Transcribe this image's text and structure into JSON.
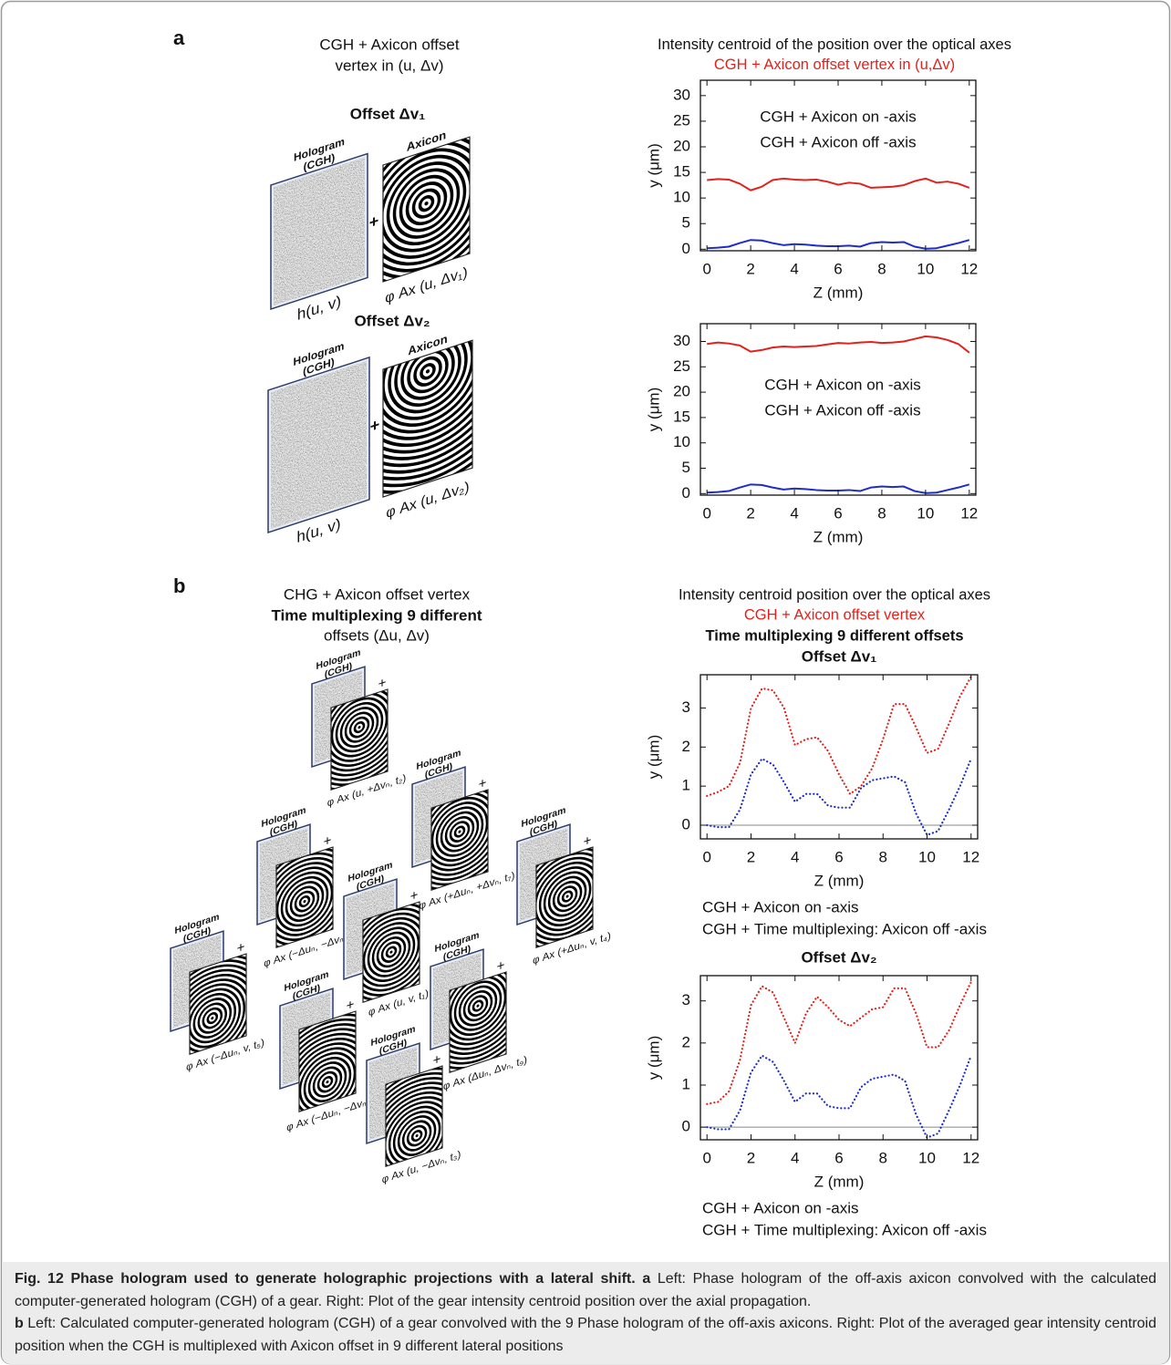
{
  "panel_a": {
    "label": "a",
    "title_lines": [
      "CGH + Axicon offset",
      "vertex in (u, Δv)"
    ],
    "diagrams": [
      {
        "title": "Offset Δv₁",
        "hologram": [
          "Hologram",
          "(CGH)"
        ],
        "axicon": "Axicon",
        "plus": "+",
        "hologram_caption": "h(u, v)",
        "axicon_caption": "φ Ax (u, Δv₁)"
      },
      {
        "title": "Offset Δv₂",
        "hologram": [
          "Hologram",
          "(CGH)"
        ],
        "axicon": "Axicon",
        "plus": "+",
        "hologram_caption": "h(u, v)",
        "axicon_caption": "φ Ax (u, Δv₂)"
      }
    ]
  },
  "panel_b": {
    "label": "b",
    "title_lines": [
      "CHG + Axicon offset vertex",
      "Time multiplexing 9 different",
      "offsets (Δu, Δv)"
    ],
    "chart_heading": [
      "Intensity centroid position over the optical axes",
      "CGH + Axicon offset vertex",
      "Time multiplexing 9 different offsets"
    ],
    "hologram": [
      "Hologram",
      "(CGH)"
    ],
    "plus": "+",
    "items": [
      "φ Ax (u, +Δvₙ, t₂)",
      "φ Ax (+Δuₙ, +Δvₙ, t₇)",
      "φ Ax (−Δuₙ, −Δvₙ, t₆)",
      "φ Ax (u, v, t₁)",
      "φ Ax (+Δuₙ, v, t₄)",
      "φ Ax (−Δuₙ, v, t₅)",
      "φ Ax (Δuₙ, Δvₙ, t₉)",
      "φ Ax (−Δuₙ, −Δvₙ, t₈)",
      "φ Ax (u, −Δvₙ, t₃)"
    ]
  },
  "chart_data": [
    {
      "type": "line",
      "title": "Intensity centroid of the position over the optical axes",
      "subtitle": "CGH + Axicon offset vertex in (u,Δv)",
      "subtitle_color": "#e3211c",
      "xlabel": "Z (mm)",
      "ylabel": "y (μm)",
      "line_style": "solid",
      "legend": "upper center",
      "zero_line": false,
      "x": [
        0,
        0.5,
        1,
        1.5,
        2,
        2.5,
        3,
        3.5,
        4,
        4.5,
        5,
        5.5,
        6,
        6.5,
        7,
        7.5,
        8,
        8.5,
        9,
        9.5,
        10,
        10.5,
        11,
        11.5,
        12
      ],
      "series": [
        {
          "name": "CGH + Axicon on -axis",
          "color": "#1f2ccc",
          "values": [
            0.2,
            0.3,
            0.5,
            1.2,
            1.8,
            1.7,
            1.2,
            0.8,
            1.0,
            0.9,
            0.7,
            0.6,
            0.6,
            0.7,
            0.5,
            1.2,
            1.4,
            1.3,
            1.4,
            0.5,
            0.1,
            0.2,
            0.7,
            1.2,
            1.8
          ]
        },
        {
          "name": "CGH + Axicon off -axis",
          "color": "#e3211c",
          "values": [
            13.5,
            13.7,
            13.6,
            12.8,
            11.5,
            12.2,
            13.5,
            13.8,
            13.6,
            13.5,
            13.6,
            13.2,
            12.6,
            13.0,
            12.8,
            12.0,
            12.1,
            12.2,
            12.5,
            13.3,
            13.8,
            13.0,
            13.2,
            12.8,
            12.0
          ]
        }
      ],
      "xlim": [
        -0.3,
        12.3
      ],
      "xticks": [
        0,
        2,
        4,
        6,
        8,
        10,
        12
      ],
      "ylim": [
        -0.3,
        33
      ],
      "yticks": [
        0,
        5,
        10,
        15,
        20,
        25,
        30
      ]
    },
    {
      "type": "line",
      "xlabel": "Z (mm)",
      "ylabel": "y (μm)",
      "line_style": "solid",
      "legend": "center",
      "zero_line": false,
      "x": [
        0,
        0.5,
        1,
        1.5,
        2,
        2.5,
        3,
        3.5,
        4,
        4.5,
        5,
        5.5,
        6,
        6.5,
        7,
        7.5,
        8,
        8.5,
        9,
        9.5,
        10,
        10.5,
        11,
        11.5,
        12
      ],
      "series": [
        {
          "name": "CGH + Axicon on -axis",
          "color": "#1f2ccc",
          "values": [
            0.2,
            0.3,
            0.5,
            1.2,
            1.8,
            1.7,
            1.2,
            0.8,
            1.0,
            0.9,
            0.7,
            0.6,
            0.6,
            0.7,
            0.5,
            1.2,
            1.4,
            1.3,
            1.4,
            0.5,
            0.1,
            0.2,
            0.7,
            1.2,
            1.8
          ]
        },
        {
          "name": "CGH + Axicon off -axis",
          "color": "#e3211c",
          "values": [
            29.5,
            29.8,
            29.6,
            29.2,
            28.0,
            28.3,
            28.8,
            29.0,
            28.9,
            29.0,
            29.1,
            29.4,
            29.7,
            29.6,
            29.8,
            29.9,
            29.7,
            29.8,
            30.0,
            30.5,
            31.0,
            30.8,
            30.3,
            29.5,
            27.8
          ]
        }
      ],
      "xlim": [
        -0.3,
        12.3
      ],
      "xticks": [
        0,
        2,
        4,
        6,
        8,
        10,
        12
      ],
      "ylim": [
        -0.3,
        33.5
      ],
      "yticks": [
        0,
        5,
        10,
        15,
        20,
        25,
        30
      ]
    },
    {
      "type": "line",
      "title": "Offset Δv₁",
      "xlabel": "Z (mm)",
      "ylabel": "y (μm)",
      "line_style": "dotted",
      "legend": "below",
      "zero_line": true,
      "x": [
        0,
        0.5,
        1,
        1.5,
        2,
        2.5,
        3,
        3.5,
        4,
        4.5,
        5,
        5.5,
        6,
        6.5,
        7,
        7.5,
        8,
        8.5,
        9,
        9.5,
        10,
        10.5,
        11,
        11.5,
        12
      ],
      "series": [
        {
          "name": "CGH + Axicon on -axis",
          "color": "#1f2ccc",
          "values": [
            0,
            -0.05,
            -0.05,
            0.4,
            1.3,
            1.7,
            1.55,
            1.1,
            0.6,
            0.8,
            0.8,
            0.5,
            0.45,
            0.45,
            0.95,
            1.15,
            1.2,
            1.25,
            1.1,
            0.3,
            -0.25,
            -0.15,
            0.4,
            1.0,
            1.7
          ]
        },
        {
          "name": "CGH + Time multiplexing: Axicon off -axis",
          "color": "#e3211c",
          "values": [
            0.75,
            0.85,
            1.0,
            1.6,
            3.0,
            3.5,
            3.45,
            3.0,
            2.05,
            2.2,
            2.25,
            1.9,
            1.3,
            0.8,
            1.0,
            1.45,
            2.2,
            3.1,
            3.1,
            2.5,
            1.85,
            1.95,
            2.6,
            3.3,
            3.8
          ]
        }
      ],
      "xlim": [
        -0.3,
        12.3
      ],
      "xticks": [
        0,
        2,
        4,
        6,
        8,
        10,
        12
      ],
      "ylim": [
        -0.35,
        3.85
      ],
      "yticks": [
        0,
        1,
        2,
        3
      ]
    },
    {
      "type": "line",
      "title": "Offset Δv₂",
      "xlabel": "Z (mm)",
      "ylabel": "y (μm)",
      "line_style": "dotted",
      "legend": "below",
      "zero_line": true,
      "x": [
        0,
        0.5,
        1,
        1.5,
        2,
        2.5,
        3,
        3.5,
        4,
        4.5,
        5,
        5.5,
        6,
        6.5,
        7,
        7.5,
        8,
        8.5,
        9,
        9.5,
        10,
        10.5,
        11,
        11.5,
        12
      ],
      "series": [
        {
          "name": "CGH + Axicon on -axis",
          "color": "#1f2ccc",
          "values": [
            0,
            -0.05,
            -0.05,
            0.4,
            1.3,
            1.7,
            1.55,
            1.1,
            0.6,
            0.8,
            0.8,
            0.5,
            0.45,
            0.45,
            0.95,
            1.15,
            1.2,
            1.25,
            1.1,
            0.3,
            -0.25,
            -0.15,
            0.4,
            1.0,
            1.7
          ]
        },
        {
          "name": "CGH + Time multiplexing: Axicon off -axis",
          "color": "#e3211c",
          "values": [
            0.55,
            0.6,
            0.85,
            1.6,
            2.9,
            3.35,
            3.2,
            2.6,
            2.0,
            2.7,
            3.1,
            2.85,
            2.55,
            2.4,
            2.6,
            2.8,
            2.85,
            3.3,
            3.3,
            2.7,
            1.9,
            1.9,
            2.3,
            2.9,
            3.45
          ]
        }
      ],
      "xlim": [
        -0.3,
        12.3
      ],
      "xticks": [
        0,
        2,
        4,
        6,
        8,
        10,
        12
      ],
      "ylim": [
        -0.3,
        3.6
      ],
      "yticks": [
        0,
        1,
        2,
        3
      ]
    }
  ],
  "caption": {
    "title": "Fig. 12 Phase hologram used to generate holographic projections with a lateral shift.",
    "a_label": "a",
    "a_text": "Left: Phase hologram of the off-axis axicon convolved with the calculated computer-generated hologram (CGH) of a gear. Right: Plot of the gear intensity centroid position over the axial propagation.",
    "b_label": "b",
    "b_text": "Left: Calculated computer-generated hologram (CGH) of a gear convolved with the 9 Phase hologram of the off-axis axicons. Right: Plot of the averaged gear intensity centroid position when the CGH is multiplexed with Axicon offset in 9 different lateral positions"
  }
}
